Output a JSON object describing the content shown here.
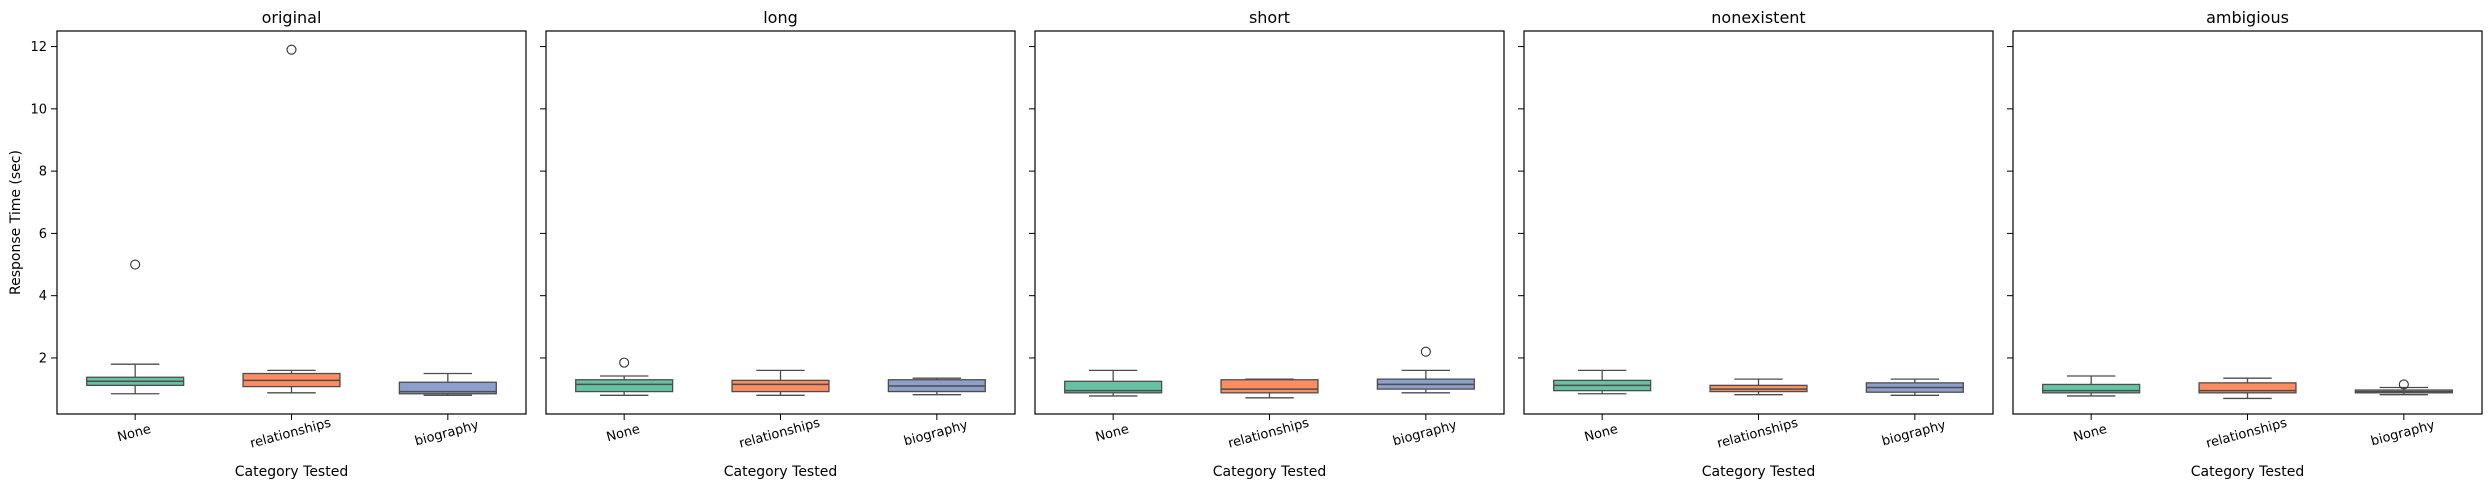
{
  "chart_data": {
    "type": "boxplot",
    "ylabel": "Response Time (sec)",
    "xlabel": "Category Tested",
    "categories": [
      "None",
      "relationships",
      "biography"
    ],
    "colors": [
      "#66c2a5",
      "#fc8d62",
      "#8da0cb"
    ],
    "ylim": [
      0.2,
      12.5
    ],
    "yticks": [
      2,
      4,
      6,
      8,
      10,
      12
    ],
    "sharey": true,
    "panels": [
      {
        "title": "original",
        "boxes": [
          {
            "category": "None",
            "whisker_low": 0.85,
            "q1": 1.12,
            "median": 1.25,
            "q3": 1.38,
            "whisker_high": 1.8,
            "outliers": [
              5.0
            ]
          },
          {
            "category": "relationships",
            "whisker_low": 0.88,
            "q1": 1.08,
            "median": 1.28,
            "q3": 1.5,
            "whisker_high": 1.6,
            "outliers": [
              11.9
            ]
          },
          {
            "category": "biography",
            "whisker_low": 0.8,
            "q1": 0.85,
            "median": 0.92,
            "q3": 1.22,
            "whisker_high": 1.5,
            "outliers": []
          }
        ]
      },
      {
        "title": "long",
        "boxes": [
          {
            "category": "None",
            "whisker_low": 0.8,
            "q1": 0.92,
            "median": 1.15,
            "q3": 1.3,
            "whisker_high": 1.42,
            "outliers": [
              1.85
            ]
          },
          {
            "category": "relationships",
            "whisker_low": 0.8,
            "q1": 0.92,
            "median": 1.15,
            "q3": 1.28,
            "whisker_high": 1.6,
            "outliers": []
          },
          {
            "category": "biography",
            "whisker_low": 0.82,
            "q1": 0.92,
            "median": 1.1,
            "q3": 1.3,
            "whisker_high": 1.35,
            "outliers": []
          }
        ]
      },
      {
        "title": "short",
        "boxes": [
          {
            "category": "None",
            "whisker_low": 0.78,
            "q1": 0.88,
            "median": 0.95,
            "q3": 1.25,
            "whisker_high": 1.6,
            "outliers": []
          },
          {
            "category": "relationships",
            "whisker_low": 0.72,
            "q1": 0.88,
            "median": 1.0,
            "q3": 1.3,
            "whisker_high": 1.32,
            "outliers": []
          },
          {
            "category": "biography",
            "whisker_low": 0.88,
            "q1": 1.0,
            "median": 1.15,
            "q3": 1.32,
            "whisker_high": 1.6,
            "outliers": [
              2.2
            ]
          }
        ]
      },
      {
        "title": "nonexistent",
        "boxes": [
          {
            "category": "None",
            "whisker_low": 0.85,
            "q1": 0.95,
            "median": 1.12,
            "q3": 1.28,
            "whisker_high": 1.6,
            "outliers": []
          },
          {
            "category": "relationships",
            "whisker_low": 0.82,
            "q1": 0.92,
            "median": 1.0,
            "q3": 1.12,
            "whisker_high": 1.32,
            "outliers": []
          },
          {
            "category": "biography",
            "whisker_low": 0.8,
            "q1": 0.9,
            "median": 1.05,
            "q3": 1.2,
            "whisker_high": 1.32,
            "outliers": []
          }
        ]
      },
      {
        "title": "ambigious",
        "boxes": [
          {
            "category": "None",
            "whisker_low": 0.78,
            "q1": 0.88,
            "median": 0.95,
            "q3": 1.15,
            "whisker_high": 1.42,
            "outliers": []
          },
          {
            "category": "relationships",
            "whisker_low": 0.7,
            "q1": 0.88,
            "median": 0.95,
            "q3": 1.2,
            "whisker_high": 1.35,
            "outliers": []
          },
          {
            "category": "biography",
            "whisker_low": 0.82,
            "q1": 0.88,
            "median": 0.92,
            "q3": 0.97,
            "whisker_high": 1.05,
            "outliers": [
              1.15
            ]
          }
        ]
      }
    ]
  }
}
